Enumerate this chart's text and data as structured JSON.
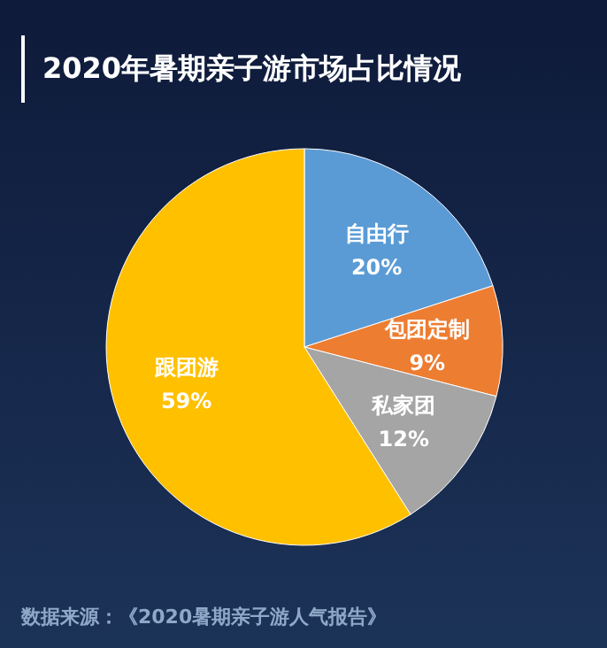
{
  "chart_data": {
    "type": "pie",
    "title": "2020年暑期亲子游市场占比情况",
    "categories": [
      "自由行",
      "包团定制",
      "私家团",
      "跟团游"
    ],
    "values": [
      20,
      9,
      12,
      59
    ],
    "value_labels": [
      "20%",
      "9%",
      "12%",
      "59%"
    ],
    "colors": [
      "#5b9bd5",
      "#ed7d31",
      "#a5a5a5",
      "#ffc000"
    ],
    "annotations": [
      "数据来源：《2020暑期亲子游人气报告》"
    ]
  }
}
